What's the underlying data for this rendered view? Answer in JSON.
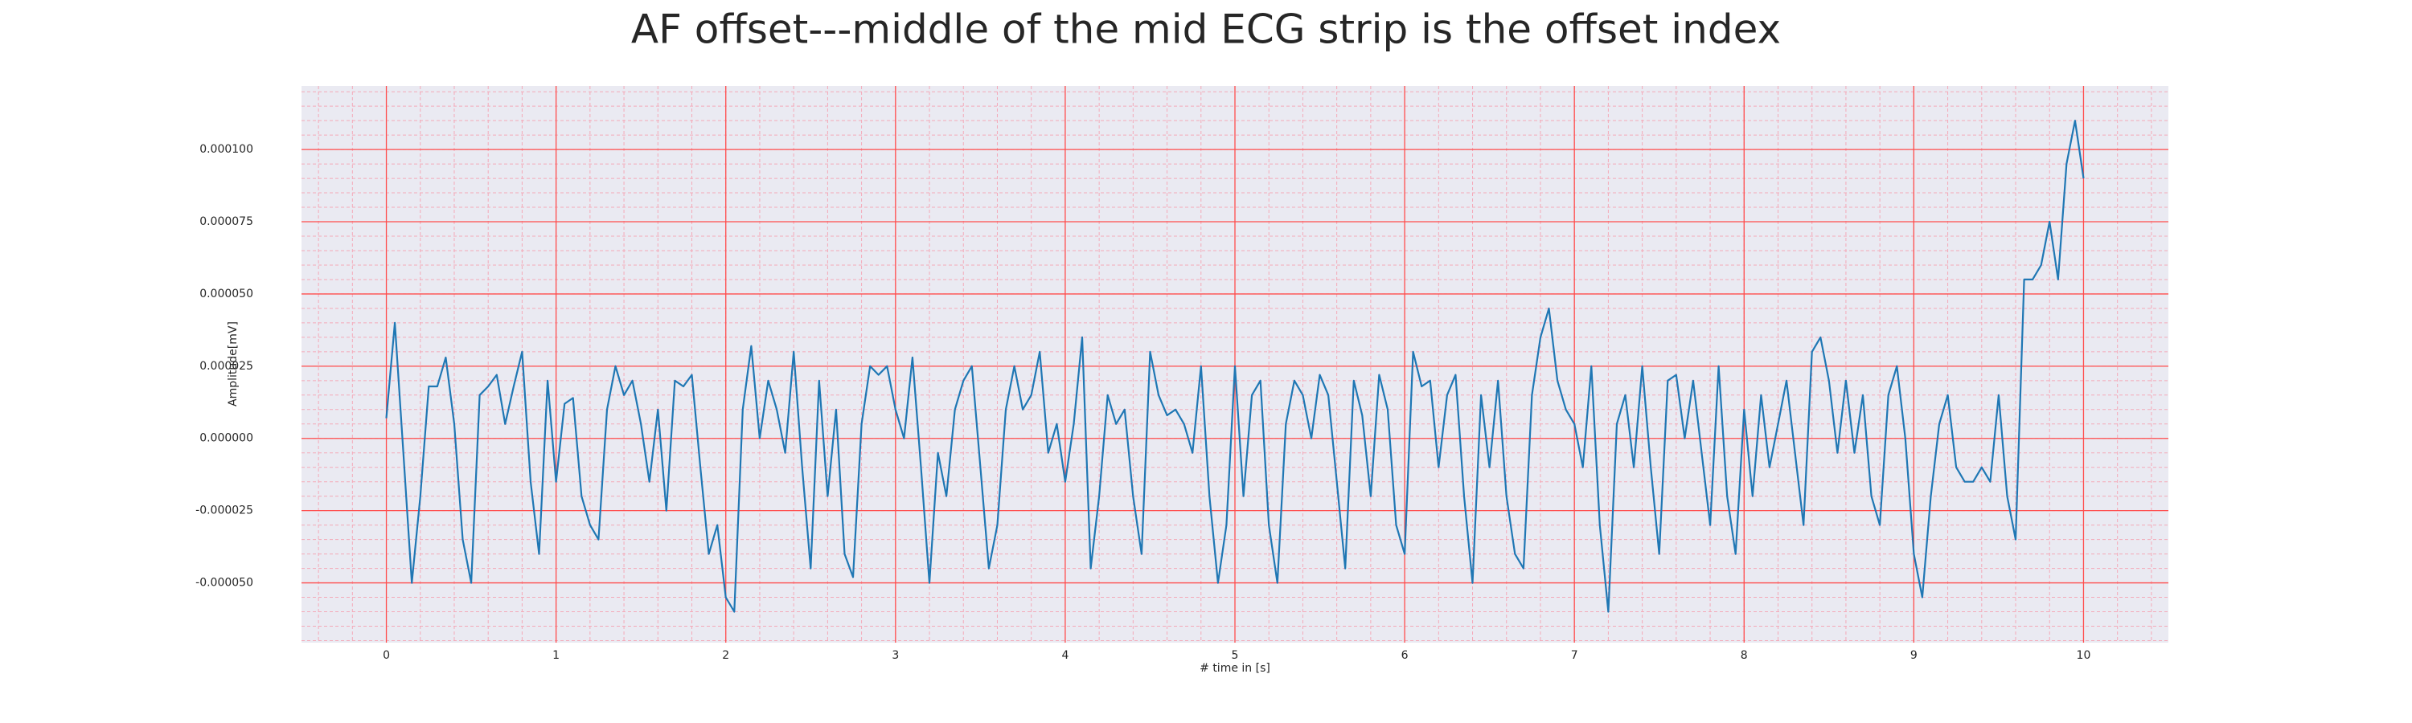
{
  "chart_data": {
    "type": "line",
    "title": "AF offset---middle of the mid ECG strip is the offset index",
    "xlabel": "# time in [s]",
    "ylabel": "Amplitude[mV]",
    "color": "#1f77b4",
    "background": "#eaeaf2",
    "grid": true,
    "grid_color": "#ff4d4d",
    "minor_grid": true,
    "minor_grid_color": "#f4a9b8",
    "xlim": [
      -0.5,
      10.5
    ],
    "ylim": [
      -7.07e-05,
      0.000122
    ],
    "xticks": [
      0,
      1,
      2,
      3,
      4,
      5,
      6,
      7,
      8,
      9,
      10
    ],
    "yticks": [
      {
        "value": -5e-05,
        "label": "-0.000050"
      },
      {
        "value": -2.5e-05,
        "label": "-0.000025"
      },
      {
        "value": 0,
        "label": "0.000000"
      },
      {
        "value": 2.5e-05,
        "label": "0.000025"
      },
      {
        "value": 5e-05,
        "label": "0.000050"
      },
      {
        "value": 7.5e-05,
        "label": "0.000075"
      },
      {
        "value": 0.0001,
        "label": "0.000100"
      }
    ],
    "x": [
      0,
      0.05,
      0.1,
      0.15,
      0.2,
      0.25,
      0.3,
      0.35,
      0.4,
      0.45,
      0.5,
      0.55,
      0.6,
      0.65,
      0.7,
      0.75,
      0.8,
      0.85,
      0.9,
      0.95,
      1,
      1.05,
      1.1,
      1.15,
      1.2,
      1.25,
      1.3,
      1.35,
      1.4,
      1.45,
      1.5,
      1.55,
      1.6,
      1.65,
      1.7,
      1.75,
      1.8,
      1.85,
      1.9,
      1.95,
      2,
      2.05,
      2.1,
      2.15,
      2.2,
      2.25,
      2.3,
      2.35,
      2.4,
      2.45,
      2.5,
      2.55,
      2.6,
      2.65,
      2.7,
      2.75,
      2.8,
      2.85,
      2.9,
      2.95,
      3,
      3.05,
      3.1,
      3.15,
      3.2,
      3.25,
      3.3,
      3.35,
      3.4,
      3.45,
      3.5,
      3.55,
      3.6,
      3.65,
      3.7,
      3.75,
      3.8,
      3.85,
      3.9,
      3.95,
      4,
      4.05,
      4.1,
      4.15,
      4.2,
      4.25,
      4.3,
      4.35,
      4.4,
      4.45,
      4.5,
      4.55,
      4.6,
      4.65,
      4.7,
      4.75,
      4.8,
      4.85,
      4.9,
      4.95,
      5,
      5.05,
      5.1,
      5.15,
      5.2,
      5.25,
      5.3,
      5.35,
      5.4,
      5.45,
      5.5,
      5.55,
      5.6,
      5.65,
      5.7,
      5.75,
      5.8,
      5.85,
      5.9,
      5.95,
      6,
      6.05,
      6.1,
      6.15,
      6.2,
      6.25,
      6.3,
      6.35,
      6.4,
      6.45,
      6.5,
      6.55,
      6.6,
      6.65,
      6.7,
      6.75,
      6.8,
      6.85,
      6.9,
      6.95,
      7,
      7.05,
      7.1,
      7.15,
      7.2,
      7.25,
      7.3,
      7.35,
      7.4,
      7.45,
      7.5,
      7.55,
      7.6,
      7.65,
      7.7,
      7.75,
      7.8,
      7.85,
      7.9,
      7.95,
      8,
      8.05,
      8.1,
      8.15,
      8.2,
      8.25,
      8.3,
      8.35,
      8.4,
      8.45,
      8.5,
      8.55,
      8.6,
      8.65,
      8.7,
      8.75,
      8.8,
      8.85,
      8.9,
      8.95,
      9,
      9.05,
      9.1,
      9.15,
      9.2,
      9.25,
      9.3,
      9.35,
      9.4,
      9.45,
      9.5,
      9.55,
      9.6,
      9.65,
      9.7,
      9.75,
      9.8,
      9.85,
      9.9,
      9.95,
      10
    ],
    "values": [
      7e-06,
      4e-05,
      -5e-06,
      -5e-05,
      -2e-05,
      1.8e-05,
      1.8e-05,
      2.8e-05,
      5e-06,
      -3.5e-05,
      -5e-05,
      1.5e-05,
      1.8e-05,
      2.2e-05,
      5e-06,
      1.8e-05,
      3e-05,
      -1.5e-05,
      -4e-05,
      2e-05,
      -1.5e-05,
      1.2e-05,
      1.4e-05,
      -2e-05,
      -3e-05,
      -3.5e-05,
      1e-05,
      2.5e-05,
      1.5e-05,
      2e-05,
      5e-06,
      -1.5e-05,
      1e-05,
      -2.5e-05,
      2e-05,
      1.8e-05,
      2.2e-05,
      -1e-05,
      -4e-05,
      -3e-05,
      -5.5e-05,
      -6e-05,
      1e-05,
      3.2e-05,
      0,
      2e-05,
      1e-05,
      -5e-06,
      3e-05,
      -1e-05,
      -4.5e-05,
      2e-05,
      -2e-05,
      1e-05,
      -4e-05,
      -4.8e-05,
      5e-06,
      2.5e-05,
      2.2e-05,
      2.5e-05,
      1e-05,
      0,
      2.8e-05,
      -1e-05,
      -5e-05,
      -5e-06,
      -2e-05,
      1e-05,
      2e-05,
      2.5e-05,
      -1e-05,
      -4.5e-05,
      -3e-05,
      1e-05,
      2.5e-05,
      1e-05,
      1.5e-05,
      3e-05,
      -5e-06,
      5e-06,
      -1.5e-05,
      5e-06,
      3.5e-05,
      -4.5e-05,
      -2e-05,
      1.5e-05,
      5e-06,
      1e-05,
      -2e-05,
      -4e-05,
      3e-05,
      1.5e-05,
      8e-06,
      1e-05,
      5e-06,
      -5e-06,
      2.5e-05,
      -2e-05,
      -5e-05,
      -3e-05,
      2.5e-05,
      -2e-05,
      1.5e-05,
      2e-05,
      -3e-05,
      -5e-05,
      5e-06,
      2e-05,
      1.5e-05,
      0,
      2.2e-05,
      1.5e-05,
      -1.5e-05,
      -4.5e-05,
      2e-05,
      8e-06,
      -2e-05,
      2.2e-05,
      1e-05,
      -3e-05,
      -4e-05,
      3e-05,
      1.8e-05,
      2e-05,
      -1e-05,
      1.5e-05,
      2.2e-05,
      -2e-05,
      -5e-05,
      1.5e-05,
      -1e-05,
      2e-05,
      -2e-05,
      -4e-05,
      -4.5e-05,
      1.5e-05,
      3.5e-05,
      4.5e-05,
      2e-05,
      1e-05,
      5e-06,
      -1e-05,
      2.5e-05,
      -3e-05,
      -6e-05,
      5e-06,
      1.5e-05,
      -1e-05,
      2.5e-05,
      -1e-05,
      -4e-05,
      2e-05,
      2.2e-05,
      0,
      2e-05,
      -5e-06,
      -3e-05,
      2.5e-05,
      -2e-05,
      -4e-05,
      1e-05,
      -2e-05,
      1.5e-05,
      -1e-05,
      5e-06,
      2e-05,
      -5e-06,
      -3e-05,
      3e-05,
      3.5e-05,
      2e-05,
      -5e-06,
      2e-05,
      -5e-06,
      1.5e-05,
      -2e-05,
      -3e-05,
      1.5e-05,
      2.5e-05,
      0,
      -4e-05,
      -5.5e-05,
      -2e-05,
      5e-06,
      1.5e-05,
      -1e-05,
      -1.5e-05,
      -1.5e-05,
      -1e-05,
      -1.5e-05,
      1.5e-05,
      -2e-05,
      -3.5e-05,
      5.5e-05,
      5.5e-05,
      6e-05,
      7.5e-05,
      5.5e-05,
      9.5e-05,
      0.00011,
      9e-05
    ]
  }
}
